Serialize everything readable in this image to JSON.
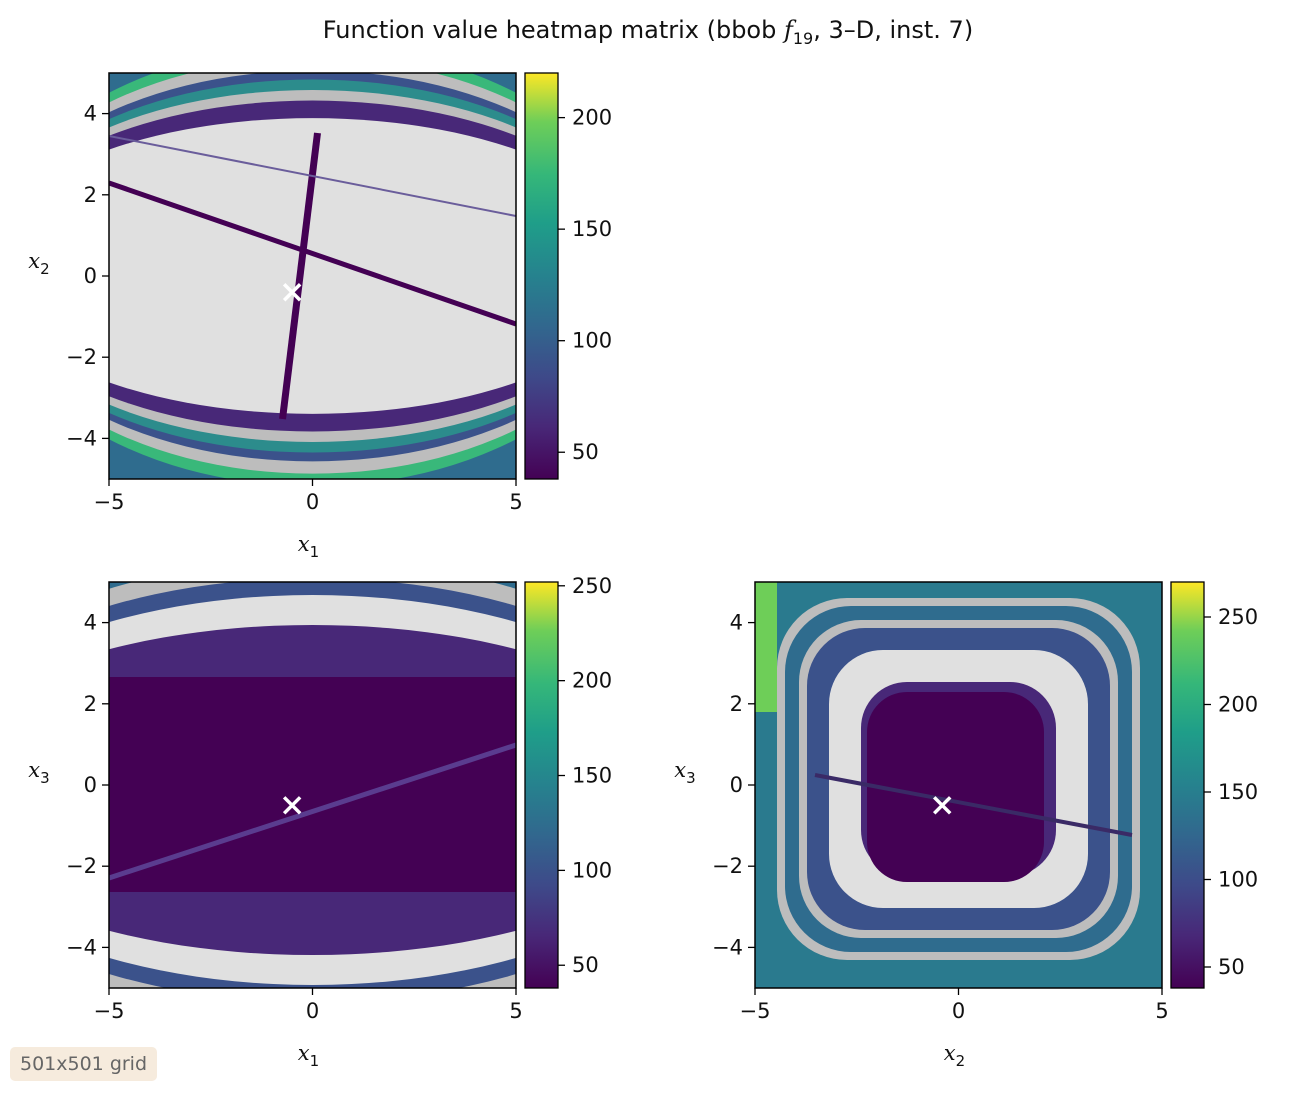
{
  "figure": {
    "title_main": "Function value heatmap matrix (bbob ",
    "title_func": "f",
    "title_sub": "19",
    "title_tail": ", 3–D, inst. 7)",
    "badge": "501x501 grid"
  },
  "chart_data": [
    {
      "type": "heatmap",
      "panel": "x1-x2",
      "xlabel": "x1",
      "ylabel": "x2",
      "xlim": [
        -5,
        5
      ],
      "ylim": [
        -5,
        5
      ],
      "xticks": [
        -5,
        0,
        5
      ],
      "yticks": [
        -4,
        -2,
        0,
        2,
        4
      ],
      "colorbar": {
        "min": 38,
        "max": 220,
        "ticks": [
          50,
          100,
          150,
          200
        ]
      },
      "optimum": {
        "x": -0.5,
        "y": -0.4
      },
      "grid": false
    },
    {
      "type": "heatmap",
      "panel": "x1-x3",
      "xlabel": "x1",
      "ylabel": "x3",
      "xlim": [
        -5,
        5
      ],
      "ylim": [
        -5,
        5
      ],
      "xticks": [
        -5,
        0,
        5
      ],
      "yticks": [
        -4,
        -2,
        0,
        2,
        4
      ],
      "colorbar": {
        "min": 38,
        "max": 252,
        "ticks": [
          50,
          100,
          150,
          200,
          250
        ]
      },
      "optimum": {
        "x": -0.5,
        "y": -0.5
      },
      "grid": false
    },
    {
      "type": "heatmap",
      "panel": "x2-x3",
      "xlabel": "x2",
      "ylabel": "x3",
      "xlim": [
        -5,
        5
      ],
      "ylim": [
        -5,
        5
      ],
      "xticks": [
        -5,
        0,
        5
      ],
      "yticks": [
        -4,
        -2,
        0,
        2,
        4
      ],
      "colorbar": {
        "min": 38,
        "max": 270,
        "ticks": [
          50,
          100,
          150,
          200,
          250
        ]
      },
      "optimum": {
        "x": -0.4,
        "y": -0.5
      },
      "grid": false
    }
  ]
}
